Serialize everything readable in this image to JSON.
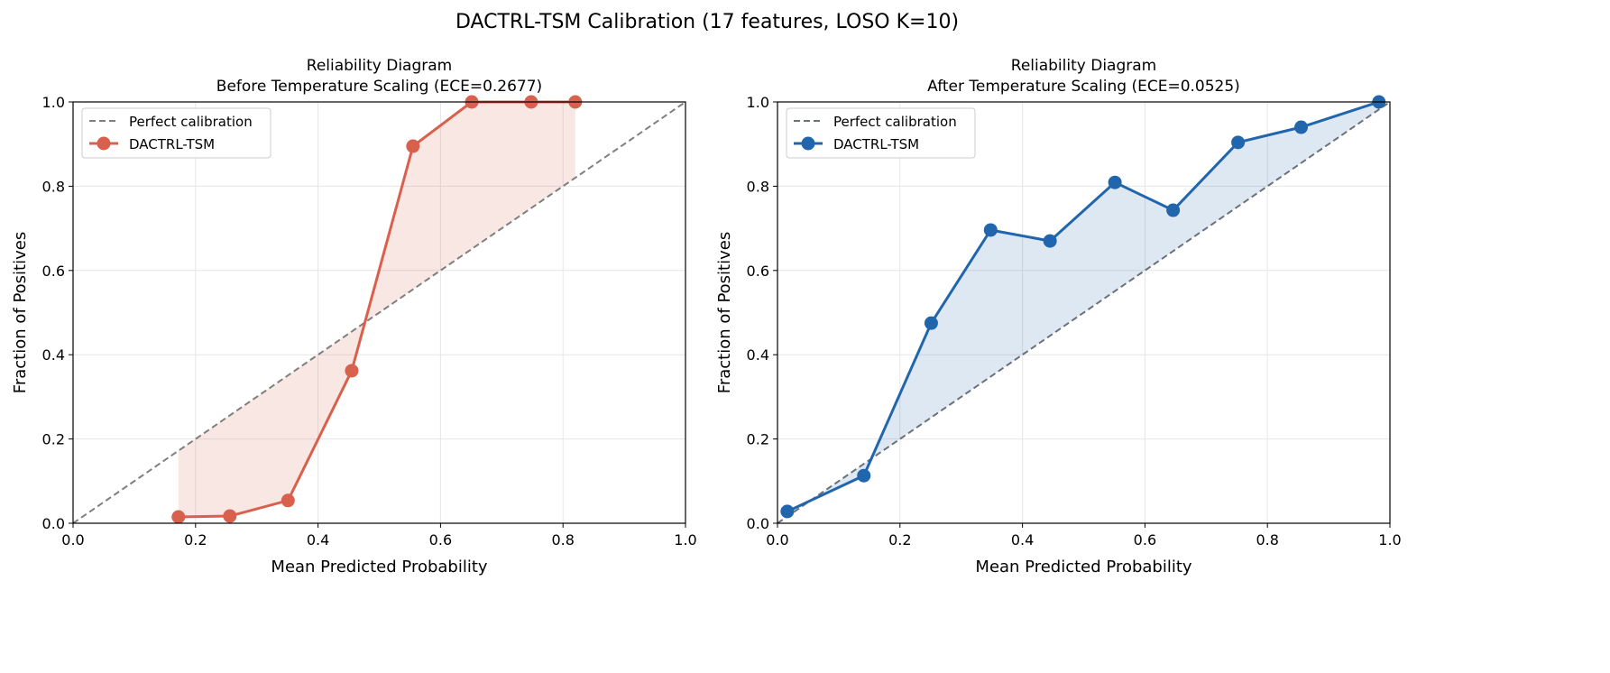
{
  "title": "DACTRL-TSM Calibration (17 features, LOSO K=10)",
  "chart_data": [
    {
      "type": "line",
      "title": "Reliability Diagram\nBefore Temperature Scaling (ECE=0.2677)",
      "title_lines": [
        "Reliability Diagram",
        "Before Temperature Scaling (ECE=0.2677)"
      ],
      "xlabel": "Mean Predicted Probability",
      "ylabel": "Fraction of Positives",
      "xlim": [
        0,
        1
      ],
      "ylim": [
        0,
        1
      ],
      "xticks": [
        "0.0",
        "0.2",
        "0.4",
        "0.6",
        "0.8",
        "1.0"
      ],
      "yticks": [
        "0.0",
        "0.2",
        "0.4",
        "0.6",
        "0.8",
        "1.0"
      ],
      "grid": true,
      "legend_position": "top-left",
      "legend": [
        "Perfect calibration",
        "DACTRL-TSM"
      ],
      "reference_line": {
        "name": "Perfect calibration",
        "x": [
          0,
          1
        ],
        "y": [
          0,
          1
        ],
        "style": "dashed",
        "color": "#7f7f7f"
      },
      "series": [
        {
          "name": "DACTRL-TSM",
          "color": "#d9604c",
          "x": [
            0.172,
            0.256,
            0.351,
            0.455,
            0.555,
            0.651,
            0.748,
            0.82
          ],
          "y": [
            0.015,
            0.017,
            0.054,
            0.362,
            0.895,
            1.0,
            1.0,
            1.0
          ]
        }
      ],
      "fill_between_diagonal": true
    },
    {
      "type": "line",
      "title": "Reliability Diagram\nAfter Temperature Scaling (ECE=0.0525)",
      "title_lines": [
        "Reliability Diagram",
        "After Temperature Scaling (ECE=0.0525)"
      ],
      "xlabel": "Mean Predicted Probability",
      "ylabel": "Fraction of Positives",
      "xlim": [
        0,
        1
      ],
      "ylim": [
        0,
        1
      ],
      "xticks": [
        "0.0",
        "0.2",
        "0.4",
        "0.6",
        "0.8",
        "1.0"
      ],
      "yticks": [
        "0.0",
        "0.2",
        "0.4",
        "0.6",
        "0.8",
        "1.0"
      ],
      "grid": true,
      "legend_position": "top-left",
      "legend": [
        "Perfect calibration",
        "DACTRL-TSM"
      ],
      "reference_line": {
        "name": "Perfect calibration",
        "x": [
          0,
          1
        ],
        "y": [
          0,
          1
        ],
        "style": "dashed",
        "color": "#6b717a"
      },
      "series": [
        {
          "name": "DACTRL-TSM",
          "color": "#2166ac",
          "x": [
            0.016,
            0.141,
            0.251,
            0.348,
            0.445,
            0.551,
            0.646,
            0.752,
            0.855,
            0.982
          ],
          "y": [
            0.028,
            0.113,
            0.475,
            0.696,
            0.67,
            0.809,
            0.743,
            0.904,
            0.94,
            1.0
          ]
        }
      ],
      "fill_between_diagonal": true
    }
  ]
}
